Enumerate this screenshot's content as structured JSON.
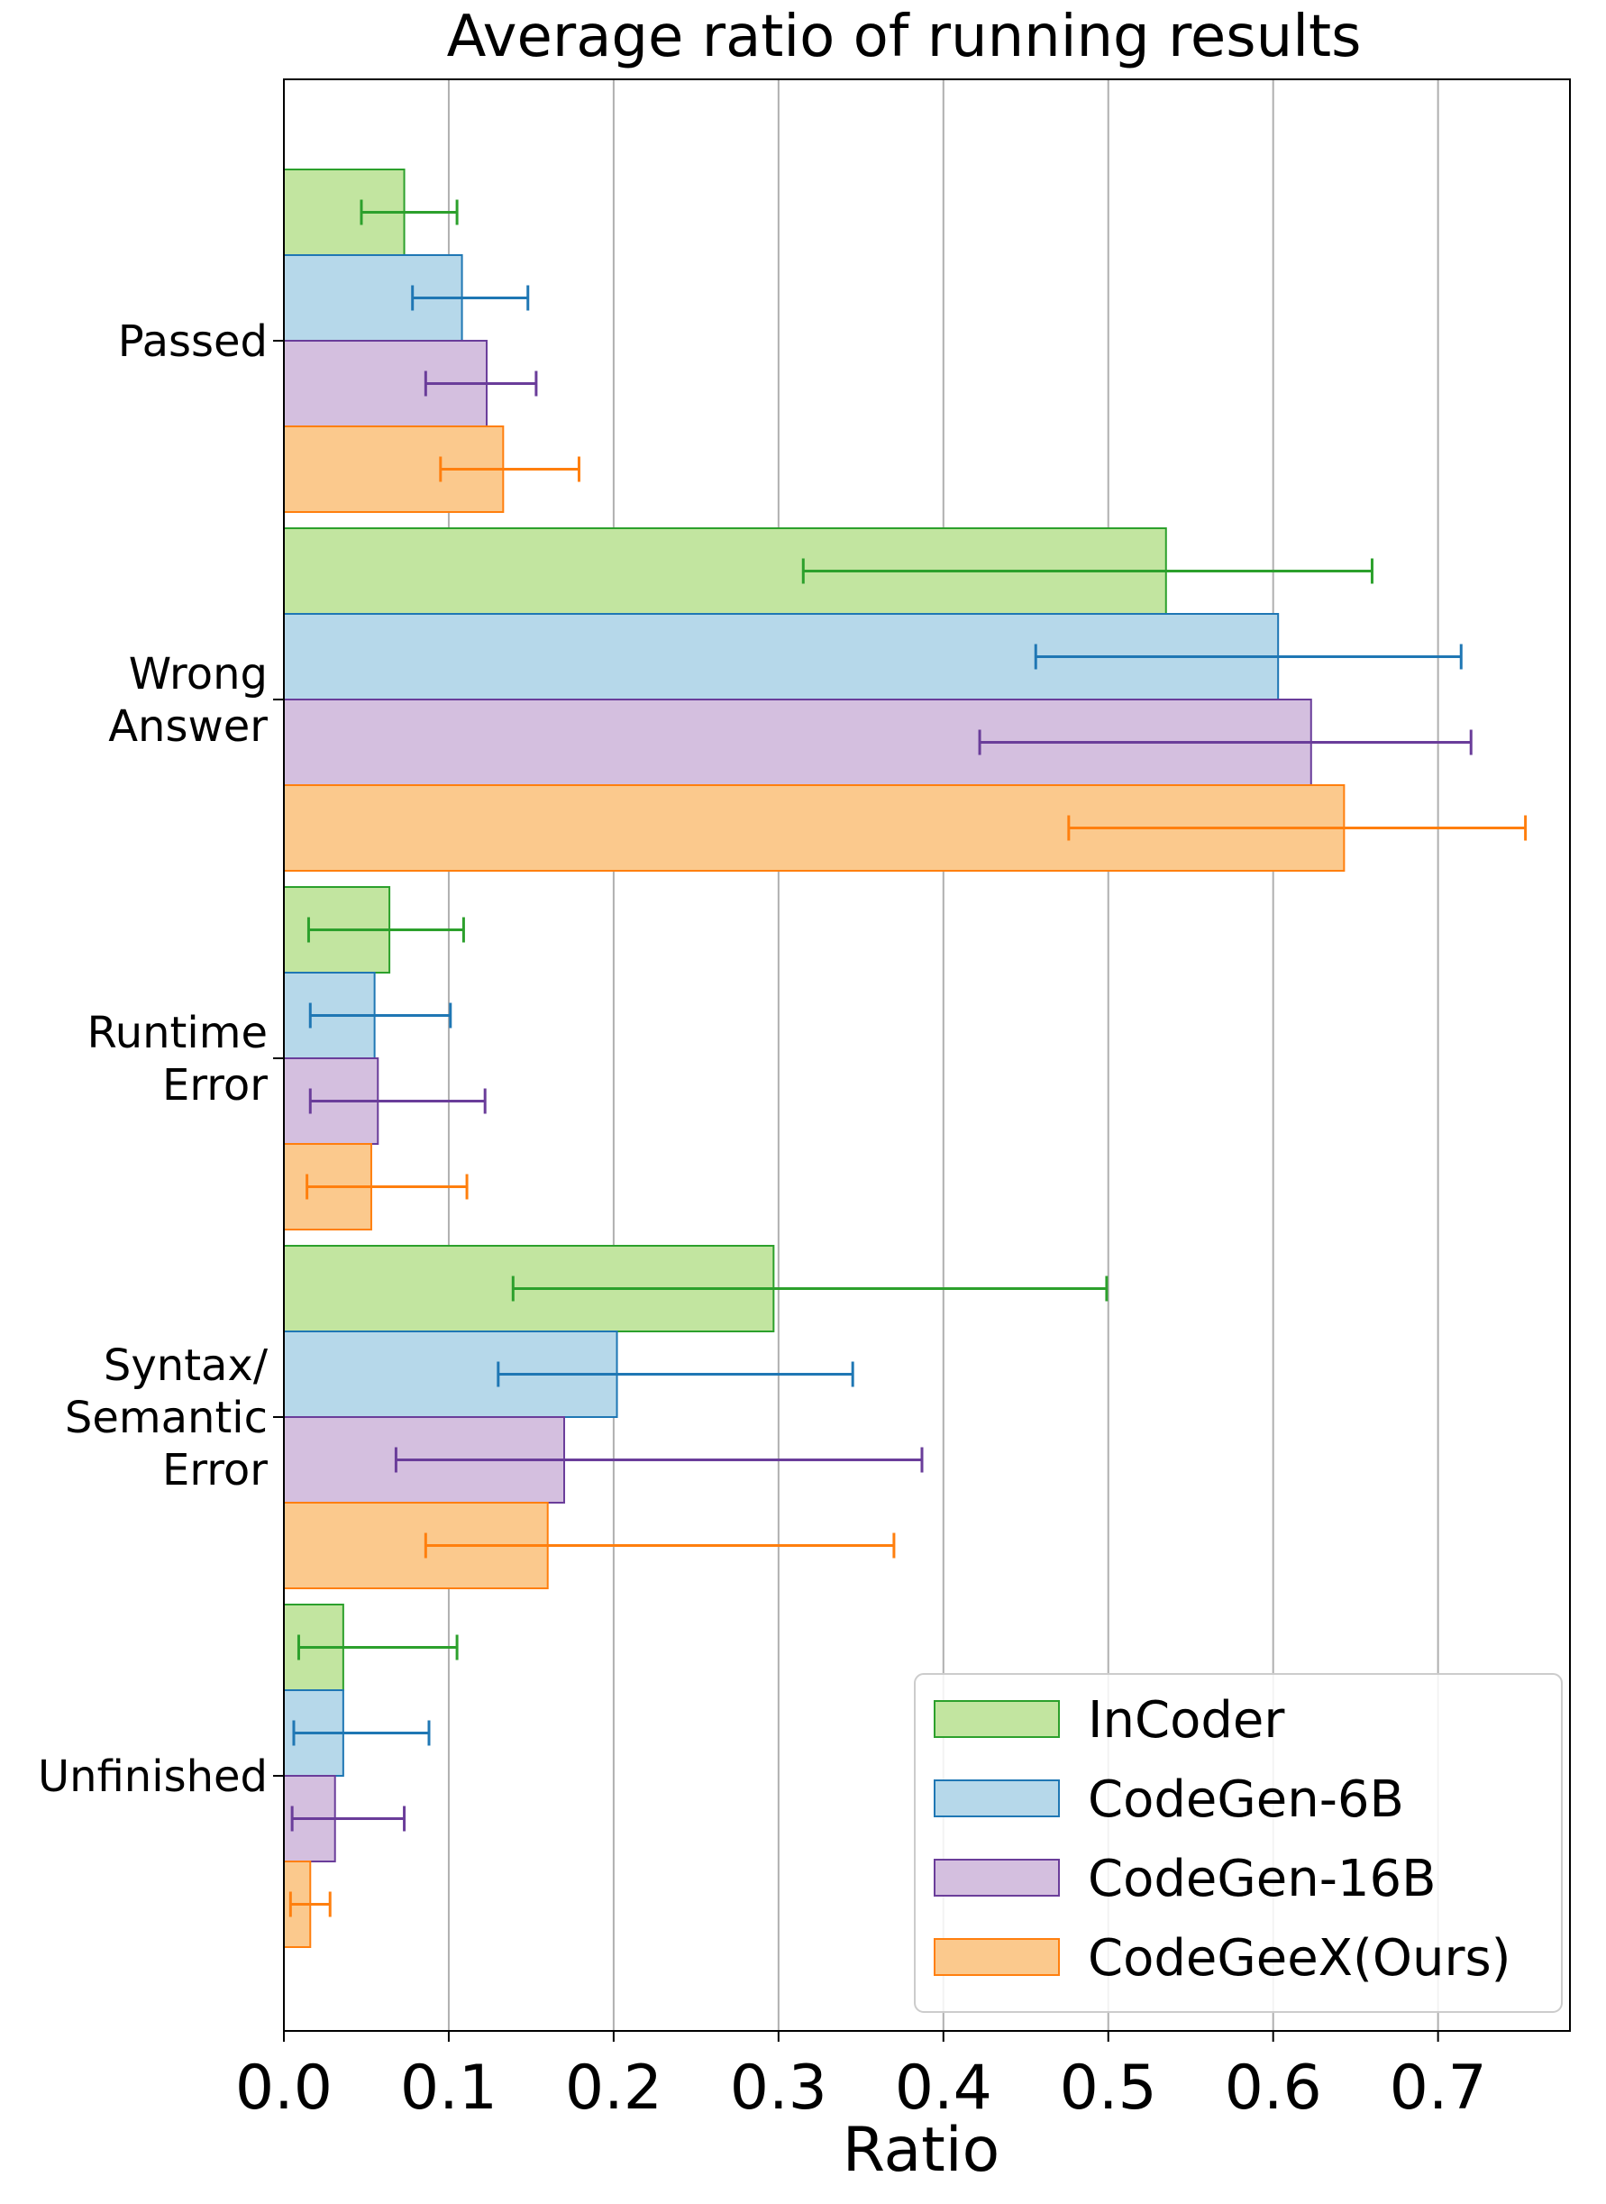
{
  "chart_data": {
    "type": "bar",
    "orientation": "horizontal",
    "title": "Average ratio of running results",
    "xlabel": "Ratio",
    "ylabel": "",
    "xlim": [
      0.0,
      0.78
    ],
    "xticks": [
      "0.0",
      "0.1",
      "0.2",
      "0.3",
      "0.4",
      "0.5",
      "0.6",
      "0.7"
    ],
    "grid": "vertical",
    "legend_position": "bottom-right",
    "categories": [
      [
        "Passed"
      ],
      [
        "Wrong",
        "Answer"
      ],
      [
        "Runtime",
        "Error"
      ],
      [
        "Syntax/",
        "Semantic",
        "Error"
      ],
      [
        "Unfinished"
      ]
    ],
    "series": [
      {
        "name": "InCoder",
        "fill": "#c2e5a0",
        "stroke": "#2ca02c",
        "values": [
          0.073,
          0.535,
          0.064,
          0.297,
          0.036
        ],
        "err_low": [
          0.047,
          0.315,
          0.015,
          0.139,
          0.009
        ],
        "err_high": [
          0.105,
          0.66,
          0.109,
          0.499,
          0.105
        ]
      },
      {
        "name": "CodeGen-6B",
        "fill": "#b6d8ea",
        "stroke": "#1f77b4",
        "values": [
          0.108,
          0.603,
          0.055,
          0.202,
          0.036
        ],
        "err_low": [
          0.078,
          0.456,
          0.016,
          0.13,
          0.006
        ],
        "err_high": [
          0.148,
          0.714,
          0.101,
          0.345,
          0.088
        ]
      },
      {
        "name": "CodeGen-16B",
        "fill": "#d4bfdf",
        "stroke": "#6a3d9a",
        "values": [
          0.123,
          0.623,
          0.057,
          0.17,
          0.031
        ],
        "err_low": [
          0.086,
          0.422,
          0.016,
          0.068,
          0.005
        ],
        "err_high": [
          0.153,
          0.72,
          0.122,
          0.387,
          0.073
        ]
      },
      {
        "name": "CodeGeeX(Ours)",
        "fill": "#fbc98d",
        "stroke": "#ff7f0e",
        "values": [
          0.133,
          0.643,
          0.053,
          0.16,
          0.016
        ],
        "err_low": [
          0.095,
          0.476,
          0.014,
          0.086,
          0.004
        ],
        "err_high": [
          0.179,
          0.753,
          0.111,
          0.37,
          0.028
        ]
      }
    ]
  }
}
